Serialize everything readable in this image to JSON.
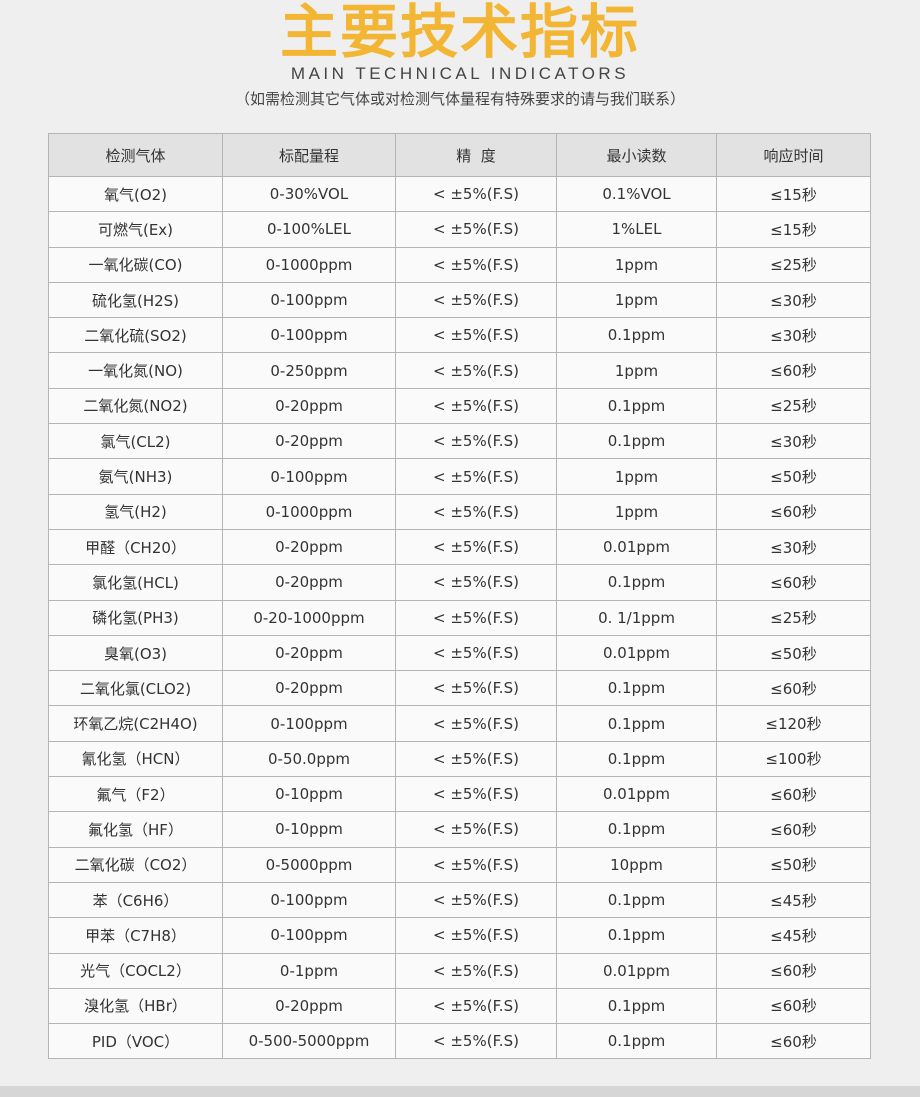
{
  "header": {
    "title": "主要技术指标",
    "subtitle": "MAIN TECHNICAL INDICATORS",
    "note": "（如需检测其它气体或对检测气体量程有特殊要求的请与我们联系）"
  },
  "colors": {
    "title": "#f3b634",
    "header_bg": "#e2e2e2",
    "border": "#b5b5b5"
  },
  "table": {
    "columns": [
      "检测气体",
      "标配量程",
      "精  度",
      "最小读数",
      "响应时间"
    ],
    "rows": [
      [
        "氧气(O2)",
        "0-30%VOL",
        "< ±5%(F.S)",
        "0.1%VOL",
        "≤15秒"
      ],
      [
        "可燃气(Ex)",
        "0-100%LEL",
        "< ±5%(F.S)",
        "1%LEL",
        "≤15秒"
      ],
      [
        "一氧化碳(CO)",
        "0-1000ppm",
        "< ±5%(F.S)",
        "1ppm",
        "≤25秒"
      ],
      [
        "硫化氢(H2S)",
        "0-100ppm",
        "< ±5%(F.S)",
        "1ppm",
        "≤30秒"
      ],
      [
        "二氧化硫(SO2)",
        "0-100ppm",
        "< ±5%(F.S)",
        "0.1ppm",
        "≤30秒"
      ],
      [
        "一氧化氮(NO)",
        "0-250ppm",
        "< ±5%(F.S)",
        "1ppm",
        "≤60秒"
      ],
      [
        "二氧化氮(NO2)",
        "0-20ppm",
        "< ±5%(F.S)",
        "0.1ppm",
        "≤25秒"
      ],
      [
        "氯气(CL2)",
        "0-20ppm",
        "< ±5%(F.S)",
        "0.1ppm",
        "≤30秒"
      ],
      [
        "氨气(NH3)",
        "0-100ppm",
        "< ±5%(F.S)",
        "1ppm",
        "≤50秒"
      ],
      [
        "氢气(H2)",
        "0-1000ppm",
        "< ±5%(F.S)",
        "1ppm",
        "≤60秒"
      ],
      [
        "甲醛（CH20）",
        "0-20ppm",
        "< ±5%(F.S)",
        "0.01ppm",
        "≤30秒"
      ],
      [
        "氯化氢(HCL)",
        "0-20ppm",
        "< ±5%(F.S)",
        "0.1ppm",
        "≤60秒"
      ],
      [
        "磷化氢(PH3)",
        "0-20-1000ppm",
        "< ±5%(F.S)",
        "0. 1/1ppm",
        "≤25秒"
      ],
      [
        "臭氧(O3)",
        "0-20ppm",
        "< ±5%(F.S)",
        "0.01ppm",
        "≤50秒"
      ],
      [
        "二氧化氯(CLO2)",
        "0-20ppm",
        "< ±5%(F.S)",
        "0.1ppm",
        "≤60秒"
      ],
      [
        "环氧乙烷(C2H4O)",
        "0-100ppm",
        "< ±5%(F.S)",
        "0.1ppm",
        "≤120秒"
      ],
      [
        "氰化氢（HCN）",
        "0-50.0ppm",
        "< ±5%(F.S)",
        "0.1ppm",
        "≤100秒"
      ],
      [
        "氟气（F2）",
        "0-10ppm",
        "< ±5%(F.S)",
        "0.01ppm",
        "≤60秒"
      ],
      [
        "氟化氢（HF）",
        "0-10ppm",
        "< ±5%(F.S)",
        "0.1ppm",
        "≤60秒"
      ],
      [
        "二氧化碳（CO2）",
        "0-5000ppm",
        "< ±5%(F.S)",
        "10ppm",
        "≤50秒"
      ],
      [
        "苯（C6H6）",
        "0-100ppm",
        "< ±5%(F.S)",
        "0.1ppm",
        "≤45秒"
      ],
      [
        "甲苯（C7H8）",
        "0-100ppm",
        "< ±5%(F.S)",
        "0.1ppm",
        "≤45秒"
      ],
      [
        "光气（COCL2）",
        "0-1ppm",
        "< ±5%(F.S)",
        "0.01ppm",
        "≤60秒"
      ],
      [
        "溴化氢（HBr）",
        "0-20ppm",
        "< ±5%(F.S)",
        "0.1ppm",
        "≤60秒"
      ],
      [
        "PID（VOC）",
        "0-500-5000ppm",
        "< ±5%(F.S)",
        "0.1ppm",
        "≤60秒"
      ]
    ]
  }
}
